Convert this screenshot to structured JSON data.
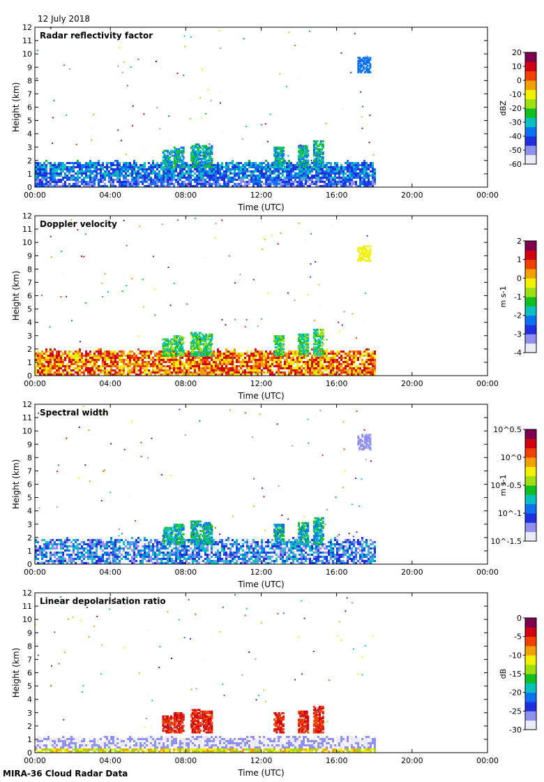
{
  "date_label": "12 July 2018",
  "footer": "MIRA-36 Cloud Radar Data",
  "colors": {
    "colormap": [
      "#ececf8",
      "#9090f0",
      "#2030e0",
      "#0c72f2",
      "#08c0c0",
      "#10c020",
      "#a0e010",
      "#f0f000",
      "#f0a000",
      "#f04000",
      "#d00010",
      "#800050"
    ]
  },
  "chart_data": [
    {
      "type": "heatmap",
      "title": "Radar reflectivity factor",
      "xlabel": "Time (UTC)",
      "ylabel": "Height (km)",
      "x_ticks": [
        "00:00",
        "04:00",
        "08:00",
        "12:00",
        "16:00",
        "20:00",
        "00:00"
      ],
      "y_ticks": [
        "0",
        "1",
        "2",
        "3",
        "4",
        "5",
        "6",
        "7",
        "8",
        "9",
        "10",
        "11",
        "12"
      ],
      "xlim": [
        0,
        24
      ],
      "ylim": [
        0,
        12
      ],
      "data_extent_hours": [
        0,
        18
      ],
      "colorbar": {
        "label": "dBZ",
        "ticks": [
          "20",
          "10",
          "0",
          "-10",
          "-20",
          "-30",
          "-40",
          "-50",
          "-60"
        ]
      }
    },
    {
      "type": "heatmap",
      "title": "Doppler velocity",
      "xlabel": "Time (UTC)",
      "ylabel": "Height (km)",
      "x_ticks": [
        "00:00",
        "04:00",
        "08:00",
        "12:00",
        "16:00",
        "20:00",
        "00:00"
      ],
      "y_ticks": [
        "0",
        "1",
        "2",
        "3",
        "4",
        "5",
        "6",
        "7",
        "8",
        "9",
        "10",
        "11",
        "12"
      ],
      "xlim": [
        0,
        24
      ],
      "ylim": [
        0,
        12
      ],
      "data_extent_hours": [
        0,
        18
      ],
      "colorbar": {
        "label": "m s-1",
        "ticks": [
          "2",
          "1",
          "0",
          "-1",
          "-2",
          "-3",
          "-4"
        ]
      }
    },
    {
      "type": "heatmap",
      "title": "Spectral width",
      "xlabel": "Time (UTC)",
      "ylabel": "Height (km)",
      "x_ticks": [
        "00:00",
        "04:00",
        "08:00",
        "12:00",
        "16:00",
        "20:00",
        "00:00"
      ],
      "y_ticks": [
        "0",
        "1",
        "2",
        "3",
        "4",
        "5",
        "6",
        "7",
        "8",
        "9",
        "10",
        "11",
        "12"
      ],
      "xlim": [
        0,
        24
      ],
      "ylim": [
        0,
        12
      ],
      "data_extent_hours": [
        0,
        18
      ],
      "colorbar": {
        "label": "m s-1",
        "ticks": [
          "10^0.5",
          "10^0",
          "10^-0.5",
          "10^-1",
          "10^-1.5"
        ]
      }
    },
    {
      "type": "heatmap",
      "title": "Linear depolarisation ratio",
      "xlabel": "Time (UTC)",
      "ylabel": "Height (km)",
      "x_ticks": [
        "00:00",
        "04:00",
        "08:00",
        "12:00",
        "16:00",
        "20:00",
        "00:00"
      ],
      "y_ticks": [
        "0",
        "1",
        "2",
        "3",
        "4",
        "5",
        "6",
        "7",
        "8",
        "9",
        "10",
        "11",
        "12"
      ],
      "xlim": [
        0,
        24
      ],
      "ylim": [
        0,
        12
      ],
      "data_extent_hours": [
        0,
        18
      ],
      "colorbar": {
        "label": "dB",
        "ticks": [
          "0",
          "-5",
          "-10",
          "-15",
          "-20",
          "-25",
          "-30"
        ]
      }
    }
  ]
}
